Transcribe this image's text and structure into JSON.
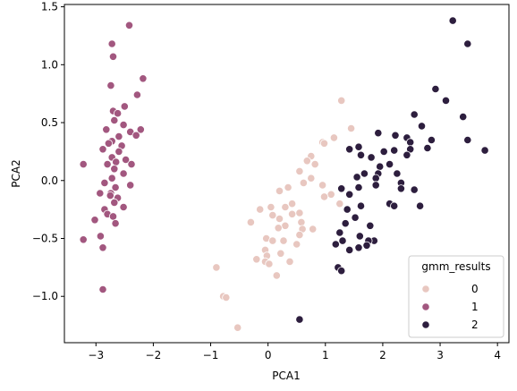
{
  "chart_data": {
    "type": "scatter",
    "xlabel": "PCA1",
    "ylabel": "PCA2",
    "xlim": [
      -3.55,
      4.2
    ],
    "ylim": [
      -1.4,
      1.52
    ],
    "xticks": [
      -3,
      -2,
      -1,
      0,
      1,
      2,
      3,
      4
    ],
    "yticks": [
      -1.0,
      -0.5,
      0.0,
      0.5,
      1.0,
      1.5
    ],
    "xtick_labels": [
      "−3",
      "−2",
      "−1",
      "0",
      "1",
      "2",
      "3",
      "4"
    ],
    "ytick_labels": [
      "−1.0",
      "−0.5",
      "0.0",
      "0.5",
      "1.0",
      "1.5"
    ],
    "grid": false,
    "legend": {
      "title": "gmm_results",
      "position": "lower-right",
      "entries": [
        "0",
        "1",
        "2"
      ]
    },
    "series": [
      {
        "name": "0",
        "color": "#e8c7c0",
        "points": [
          [
            1.28,
            0.69
          ],
          [
            1.45,
            0.45
          ],
          [
            1.15,
            0.37
          ],
          [
            0.95,
            0.33
          ],
          [
            0.98,
            0.32
          ],
          [
            0.75,
            0.21
          ],
          [
            0.68,
            0.17
          ],
          [
            0.82,
            0.14
          ],
          [
            0.55,
            0.08
          ],
          [
            0.75,
            0.02
          ],
          [
            0.62,
            -0.02
          ],
          [
            0.35,
            -0.06
          ],
          [
            0.2,
            -0.09
          ],
          [
            0.95,
            -0.04
          ],
          [
            1.1,
            -0.12
          ],
          [
            0.42,
            -0.2
          ],
          [
            0.3,
            -0.23
          ],
          [
            0.05,
            -0.23
          ],
          [
            -0.14,
            -0.25
          ],
          [
            0.55,
            -0.28
          ],
          [
            0.42,
            -0.29
          ],
          [
            0.08,
            -0.3
          ],
          [
            0.2,
            -0.33
          ],
          [
            -0.3,
            -0.36
          ],
          [
            0.58,
            -0.36
          ],
          [
            0.3,
            -0.39
          ],
          [
            0.18,
            -0.41
          ],
          [
            0.6,
            -0.42
          ],
          [
            0.78,
            -0.42
          ],
          [
            0.55,
            -0.47
          ],
          [
            -0.03,
            -0.5
          ],
          [
            0.27,
            -0.52
          ],
          [
            0.08,
            -0.52
          ],
          [
            0.5,
            -0.55
          ],
          [
            -0.05,
            -0.6
          ],
          [
            0.22,
            -0.63
          ],
          [
            -0.02,
            -0.65
          ],
          [
            -0.2,
            -0.68
          ],
          [
            -0.05,
            -0.7
          ],
          [
            0.02,
            -0.72
          ],
          [
            0.38,
            -0.7
          ],
          [
            -0.9,
            -0.75
          ],
          [
            0.15,
            -0.82
          ],
          [
            -0.78,
            -1.0
          ],
          [
            -0.73,
            -1.01
          ],
          [
            -0.53,
            -1.27
          ],
          [
            1.25,
            -0.2
          ],
          [
            0.98,
            -0.14
          ]
        ]
      },
      {
        "name": "1",
        "color": "#a2577f",
        "points": [
          [
            -2.42,
            1.34
          ],
          [
            -2.72,
            1.18
          ],
          [
            -2.7,
            1.07
          ],
          [
            -2.18,
            0.88
          ],
          [
            -2.74,
            0.82
          ],
          [
            -2.28,
            0.74
          ],
          [
            -2.7,
            0.6
          ],
          [
            -2.62,
            0.58
          ],
          [
            -2.5,
            0.64
          ],
          [
            -2.68,
            0.52
          ],
          [
            -2.52,
            0.48
          ],
          [
            -2.82,
            0.44
          ],
          [
            -2.4,
            0.42
          ],
          [
            -2.22,
            0.44
          ],
          [
            -2.3,
            0.39
          ],
          [
            -2.6,
            0.38
          ],
          [
            -2.72,
            0.34
          ],
          [
            -2.78,
            0.32
          ],
          [
            -2.55,
            0.3
          ],
          [
            -2.6,
            0.25
          ],
          [
            -2.88,
            0.27
          ],
          [
            -2.72,
            0.2
          ],
          [
            -2.48,
            0.18
          ],
          [
            -2.65,
            0.16
          ],
          [
            -2.8,
            0.14
          ],
          [
            -2.38,
            0.14
          ],
          [
            -3.22,
            0.14
          ],
          [
            -2.68,
            0.1
          ],
          [
            -2.52,
            0.06
          ],
          [
            -2.72,
            0.02
          ],
          [
            -2.85,
            -0.02
          ],
          [
            -2.4,
            -0.04
          ],
          [
            -2.66,
            -0.06
          ],
          [
            -2.74,
            -0.11
          ],
          [
            -2.93,
            -0.11
          ],
          [
            -2.75,
            -0.13
          ],
          [
            -2.62,
            -0.15
          ],
          [
            -2.68,
            -0.19
          ],
          [
            -2.52,
            -0.23
          ],
          [
            -2.85,
            -0.25
          ],
          [
            -2.8,
            -0.29
          ],
          [
            -2.7,
            -0.31
          ],
          [
            -3.02,
            -0.34
          ],
          [
            -2.66,
            -0.37
          ],
          [
            -2.92,
            -0.48
          ],
          [
            -3.22,
            -0.51
          ],
          [
            -2.88,
            -0.58
          ],
          [
            -2.88,
            -0.94
          ]
        ]
      },
      {
        "name": "2",
        "color": "#2d1e3e",
        "points": [
          [
            3.22,
            1.38
          ],
          [
            3.48,
            1.18
          ],
          [
            2.92,
            0.79
          ],
          [
            3.1,
            0.69
          ],
          [
            2.55,
            0.57
          ],
          [
            3.4,
            0.55
          ],
          [
            2.68,
            0.47
          ],
          [
            1.92,
            0.41
          ],
          [
            2.22,
            0.39
          ],
          [
            2.42,
            0.37
          ],
          [
            2.48,
            0.33
          ],
          [
            2.85,
            0.35
          ],
          [
            3.48,
            0.35
          ],
          [
            2.48,
            0.27
          ],
          [
            2.2,
            0.26
          ],
          [
            1.58,
            0.29
          ],
          [
            1.42,
            0.27
          ],
          [
            1.62,
            0.22
          ],
          [
            2.02,
            0.25
          ],
          [
            1.8,
            0.2
          ],
          [
            2.42,
            0.22
          ],
          [
            2.78,
            0.28
          ],
          [
            3.78,
            0.26
          ],
          [
            2.12,
            0.14
          ],
          [
            1.95,
            0.12
          ],
          [
            1.92,
            0.06
          ],
          [
            2.25,
            0.06
          ],
          [
            1.68,
            0.06
          ],
          [
            1.55,
            0.03
          ],
          [
            1.88,
            0.02
          ],
          [
            2.32,
            -0.02
          ],
          [
            1.88,
            -0.04
          ],
          [
            1.58,
            -0.06
          ],
          [
            2.32,
            -0.07
          ],
          [
            1.28,
            -0.07
          ],
          [
            1.42,
            -0.12
          ],
          [
            2.55,
            -0.08
          ],
          [
            1.62,
            -0.22
          ],
          [
            2.12,
            -0.2
          ],
          [
            2.2,
            -0.22
          ],
          [
            1.38,
            -0.25
          ],
          [
            2.65,
            -0.22
          ],
          [
            1.52,
            -0.32
          ],
          [
            1.35,
            -0.37
          ],
          [
            1.78,
            -0.39
          ],
          [
            1.25,
            -0.45
          ],
          [
            1.6,
            -0.48
          ],
          [
            1.85,
            -0.52
          ],
          [
            1.75,
            -0.52
          ],
          [
            1.72,
            -0.56
          ],
          [
            1.3,
            -0.52
          ],
          [
            1.18,
            -0.55
          ],
          [
            1.42,
            -0.6
          ],
          [
            1.58,
            -0.58
          ],
          [
            1.22,
            -0.75
          ],
          [
            1.28,
            -0.78
          ],
          [
            0.55,
            -1.2
          ]
        ]
      }
    ]
  }
}
